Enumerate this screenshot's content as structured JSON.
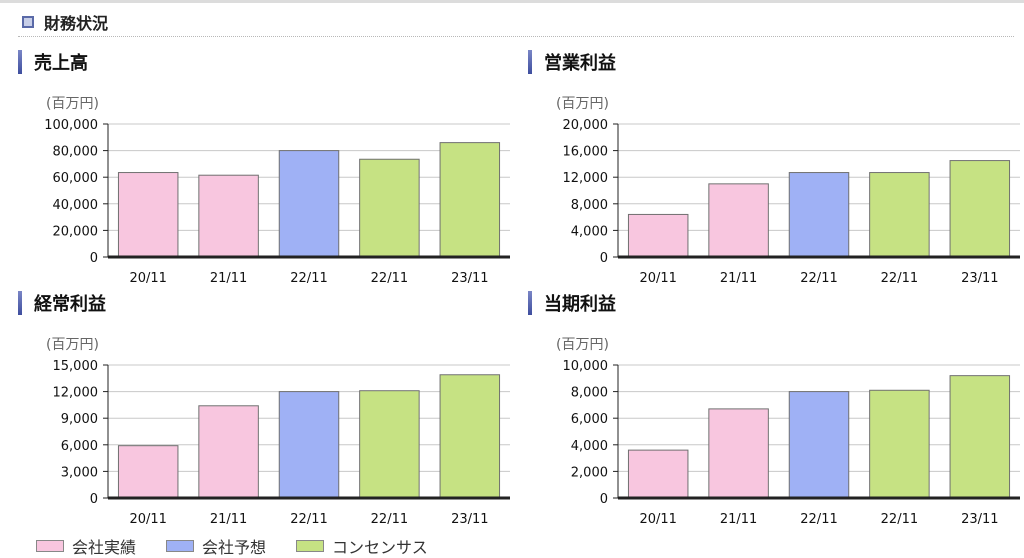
{
  "section": {
    "title": "財務状況",
    "icon": "square-bullet-icon"
  },
  "colors": {
    "actual": "#f8c6df",
    "forecast": "#9fb1f5",
    "consensus": "#c6e283",
    "border": "#707070",
    "axis": "#222222",
    "grid": "#c8c8c8"
  },
  "legend": [
    {
      "label": "会社実績",
      "color": "#f8c6df"
    },
    {
      "label": "会社予想",
      "color": "#9fb1f5"
    },
    {
      "label": "コンセンサス",
      "color": "#c6e283"
    }
  ],
  "chart_data": [
    {
      "type": "bar",
      "title": "売上高",
      "ylabel": "(百万円)",
      "categories": [
        "20/11",
        "21/11",
        "22/11",
        "22/11",
        "23/11"
      ],
      "values": [
        63500,
        61500,
        80000,
        73500,
        86000
      ],
      "kinds": [
        "actual",
        "actual",
        "forecast",
        "consensus",
        "consensus"
      ],
      "ylim": [
        0,
        100000
      ],
      "yticks": [
        "0",
        "20,000",
        "40,000",
        "60,000",
        "80,000",
        "100,000"
      ],
      "grid": true
    },
    {
      "type": "bar",
      "title": "営業利益",
      "ylabel": "(百万円)",
      "categories": [
        "20/11",
        "21/11",
        "22/11",
        "22/11",
        "23/11"
      ],
      "values": [
        6400,
        11000,
        12700,
        12700,
        14500
      ],
      "kinds": [
        "actual",
        "actual",
        "forecast",
        "consensus",
        "consensus"
      ],
      "ylim": [
        0,
        20000
      ],
      "yticks": [
        "0",
        "4,000",
        "8,000",
        "12,000",
        "16,000",
        "20,000"
      ],
      "grid": true
    },
    {
      "type": "bar",
      "title": "経常利益",
      "ylabel": "(百万円)",
      "categories": [
        "20/11",
        "21/11",
        "22/11",
        "22/11",
        "23/11"
      ],
      "values": [
        5900,
        10400,
        12000,
        12100,
        13900
      ],
      "kinds": [
        "actual",
        "actual",
        "forecast",
        "consensus",
        "consensus"
      ],
      "ylim": [
        0,
        15000
      ],
      "yticks": [
        "0",
        "3,000",
        "6,000",
        "9,000",
        "12,000",
        "15,000"
      ],
      "grid": true
    },
    {
      "type": "bar",
      "title": "当期利益",
      "ylabel": "(百万円)",
      "categories": [
        "20/11",
        "21/11",
        "22/11",
        "22/11",
        "23/11"
      ],
      "values": [
        3600,
        6700,
        8000,
        8100,
        9200
      ],
      "kinds": [
        "actual",
        "actual",
        "forecast",
        "consensus",
        "consensus"
      ],
      "ylim": [
        0,
        10000
      ],
      "yticks": [
        "0",
        "2,000",
        "4,000",
        "6,000",
        "8,000",
        "10,000"
      ],
      "grid": true
    }
  ]
}
